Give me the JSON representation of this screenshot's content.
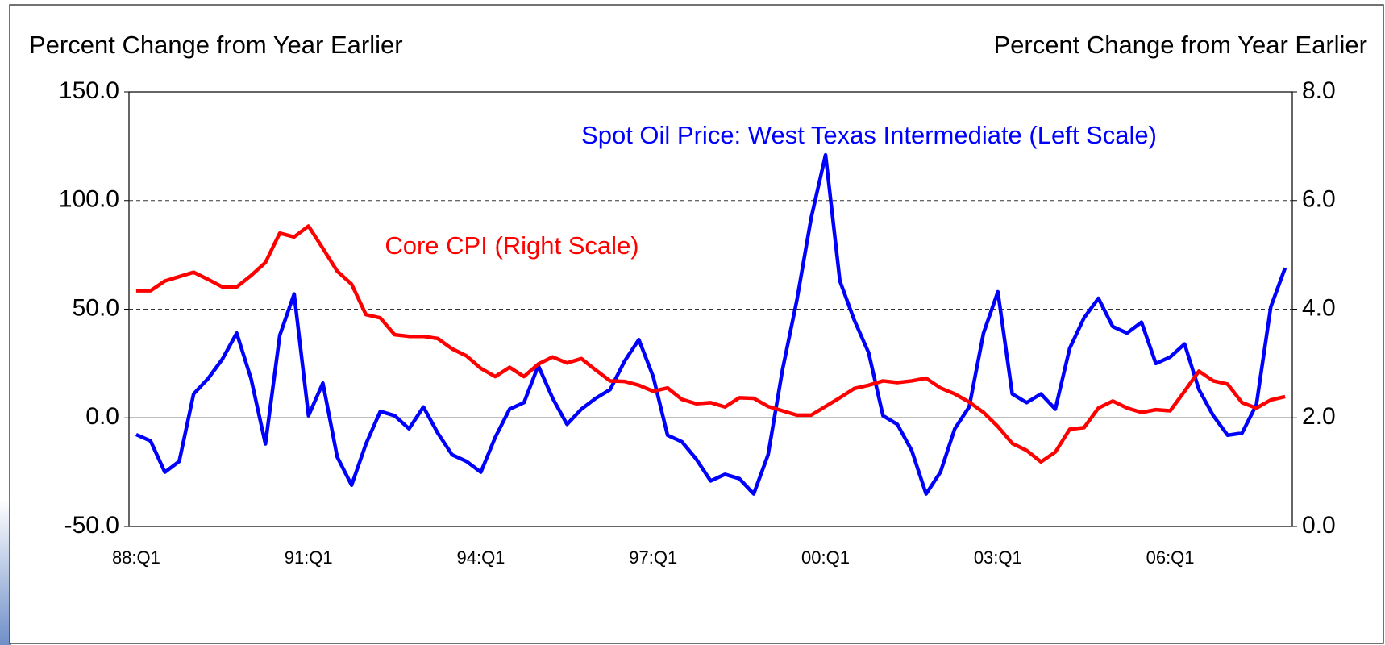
{
  "chart_data": {
    "type": "line",
    "y_label": "Percent Change from Year Earlier",
    "y2_label": "Percent Change from Year Earlier",
    "categories": [
      "88:Q1",
      null,
      null,
      null,
      null,
      null,
      null,
      null,
      null,
      null,
      null,
      null,
      "91:Q1",
      null,
      null,
      null,
      null,
      null,
      null,
      null,
      null,
      null,
      null,
      null,
      "94:Q1",
      null,
      null,
      null,
      null,
      null,
      null,
      null,
      null,
      null,
      null,
      null,
      "97:Q1",
      null,
      null,
      null,
      null,
      null,
      null,
      null,
      null,
      null,
      null,
      null,
      "00:Q1",
      null,
      null,
      null,
      null,
      null,
      null,
      null,
      null,
      null,
      null,
      null,
      "03:Q1",
      null,
      null,
      null,
      null,
      null,
      null,
      null,
      null,
      null,
      null,
      null,
      "06:Q1",
      null,
      null,
      null,
      null,
      null,
      null,
      null,
      null
    ],
    "series": [
      {
        "name": "Spot Oil Price: West Texas Intermediate (Left Scale)",
        "color": "#0000ff",
        "axis": "y",
        "values": [
          -7.7,
          -10.6,
          -25,
          -20,
          11,
          18,
          27,
          39,
          18,
          -12,
          38,
          57,
          1,
          16,
          -18,
          -31,
          -12,
          3,
          1,
          -5,
          5,
          -7,
          -17,
          -20,
          -25,
          -9,
          4,
          7,
          24,
          9,
          -3,
          4,
          9,
          13,
          26,
          36,
          19,
          -8,
          -11,
          -19,
          -29,
          -26,
          -28,
          -35,
          -17,
          22,
          54,
          92,
          121,
          63,
          45,
          30,
          1,
          -3,
          -15,
          -35,
          -25,
          -5,
          5,
          39,
          58,
          11,
          7,
          11,
          4,
          32,
          46,
          55,
          42,
          39,
          44,
          25,
          28,
          34,
          13,
          1,
          -8,
          -7,
          6,
          51,
          69
        ]
      },
      {
        "name": "Core CPI (Right Scale)",
        "color": "#ff0000",
        "axis": "y2",
        "values": [
          4.34,
          4.34,
          4.52,
          4.6,
          4.68,
          4.55,
          4.41,
          4.41,
          4.62,
          4.86,
          5.4,
          5.33,
          5.53,
          5.12,
          4.7,
          4.46,
          3.9,
          3.84,
          3.53,
          3.5,
          3.5,
          3.46,
          3.27,
          3.14,
          2.91,
          2.76,
          2.93,
          2.76,
          2.99,
          3.12,
          3.01,
          3.09,
          2.88,
          2.68,
          2.67,
          2.6,
          2.49,
          2.55,
          2.34,
          2.26,
          2.28,
          2.2,
          2.37,
          2.36,
          2.21,
          2.13,
          2.05,
          2.05,
          2.21,
          2.37,
          2.54,
          2.6,
          2.68,
          2.65,
          2.68,
          2.73,
          2.55,
          2.44,
          2.29,
          2.1,
          1.84,
          1.53,
          1.4,
          1.19,
          1.37,
          1.79,
          1.82,
          2.18,
          2.31,
          2.18,
          2.1,
          2.15,
          2.13,
          2.49,
          2.86,
          2.68,
          2.62,
          2.28,
          2.18,
          2.33,
          2.39
        ]
      }
    ],
    "ylim": [
      -50,
      150
    ],
    "yticks": [
      {
        "value": -50,
        "label": "-50.0"
      },
      {
        "value": 0,
        "label": "0.0"
      },
      {
        "value": 50,
        "label": "50.0"
      },
      {
        "value": 100,
        "label": "100.0"
      },
      {
        "value": 150,
        "label": "150.0"
      }
    ],
    "y2lim": [
      0,
      8
    ],
    "y2ticks": [
      {
        "value": 0,
        "label": "0.0"
      },
      {
        "value": 2,
        "label": "2.0"
      },
      {
        "value": 4,
        "label": "4.0"
      },
      {
        "value": 6,
        "label": "6.0"
      },
      {
        "value": 8,
        "label": "8.0"
      }
    ],
    "grid": true
  }
}
